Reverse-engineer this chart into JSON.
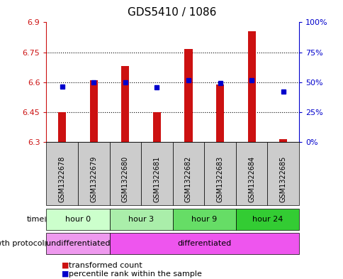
{
  "title": "GDS5410 / 1086",
  "samples": [
    "GSM1322678",
    "GSM1322679",
    "GSM1322680",
    "GSM1322681",
    "GSM1322682",
    "GSM1322683",
    "GSM1322684",
    "GSM1322685"
  ],
  "bar_values": [
    6.45,
    6.61,
    6.68,
    6.45,
    6.765,
    6.59,
    6.855,
    6.315
  ],
  "bar_base": 6.3,
  "blue_values_left": [
    6.577,
    6.6,
    6.6,
    6.575,
    6.61,
    6.596,
    6.61,
    6.555
  ],
  "ylim_left": [
    6.3,
    6.9
  ],
  "ylim_right": [
    0,
    100
  ],
  "yticks_left": [
    6.3,
    6.45,
    6.6,
    6.75,
    6.9
  ],
  "yticks_right": [
    0,
    25,
    50,
    75,
    100
  ],
  "ytick_labels_right": [
    "0%",
    "25%",
    "50%",
    "75%",
    "100%"
  ],
  "bar_color": "#cc1111",
  "blue_color": "#0000cc",
  "time_groups": [
    {
      "label": "hour 0",
      "start": 0,
      "end": 2,
      "color": "#ccffcc"
    },
    {
      "label": "hour 3",
      "start": 2,
      "end": 4,
      "color": "#aaeeaa"
    },
    {
      "label": "hour 9",
      "start": 4,
      "end": 6,
      "color": "#66dd66"
    },
    {
      "label": "hour 24",
      "start": 6,
      "end": 8,
      "color": "#33cc33"
    }
  ],
  "growth_groups": [
    {
      "label": "undifferentiated",
      "start": 0,
      "end": 2,
      "color": "#ee99ee"
    },
    {
      "label": "differentiated",
      "start": 2,
      "end": 8,
      "color": "#ee55ee"
    }
  ],
  "time_label": "time",
  "growth_label": "growth protocol",
  "legend_bar_label": "transformed count",
  "legend_blue_label": "percentile rank within the sample",
  "background_color": "#ffffff",
  "sample_panel_bg": "#cccccc",
  "title_fontsize": 11
}
